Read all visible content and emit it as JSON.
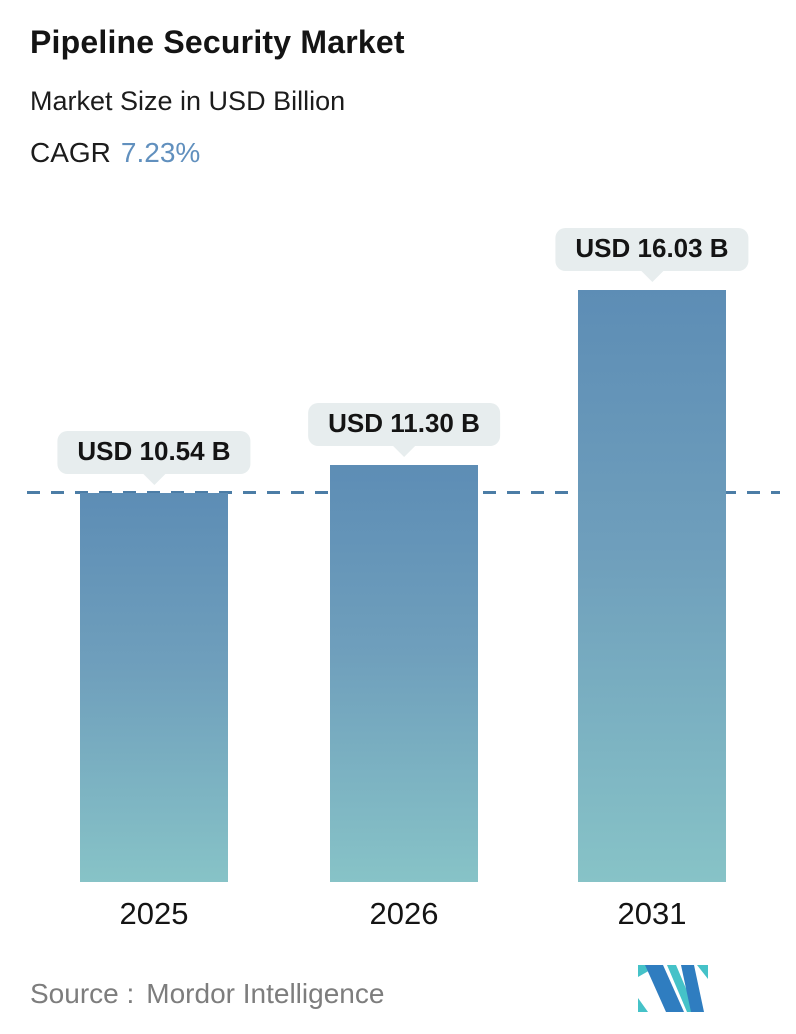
{
  "header": {
    "title": "Pipeline Security Market",
    "subtitle": "Market Size in USD Billion",
    "cagr_label": "CAGR",
    "cagr_value": "7.23%"
  },
  "chart_data": {
    "type": "bar",
    "title": "Pipeline Security Market",
    "subtitle": "Market Size in USD Billion",
    "cagr_percent": 7.23,
    "unit": "USD Billion",
    "categories": [
      "2025",
      "2026",
      "2031"
    ],
    "values": [
      10.54,
      11.3,
      16.03
    ],
    "value_labels": [
      "USD 10.54 B",
      "USD 11.30 B",
      "USD 16.03 B"
    ],
    "baseline": {
      "value": 10.54,
      "style": "dashed",
      "color": "#4c7da6"
    },
    "grid": false,
    "legend": false,
    "bar_gradient_top": "#5d8db5",
    "bar_gradient_bottom": "#87c3c7",
    "callout_bg": "#e7edee",
    "cagr_accent_color": "#6190be"
  },
  "footer": {
    "source_label": "Source :",
    "source_value": "Mordor Intelligence",
    "logo": {
      "name": "mordor-intelligence-logo",
      "teal": "#45c2c8",
      "blue": "#2f7dc0"
    }
  }
}
